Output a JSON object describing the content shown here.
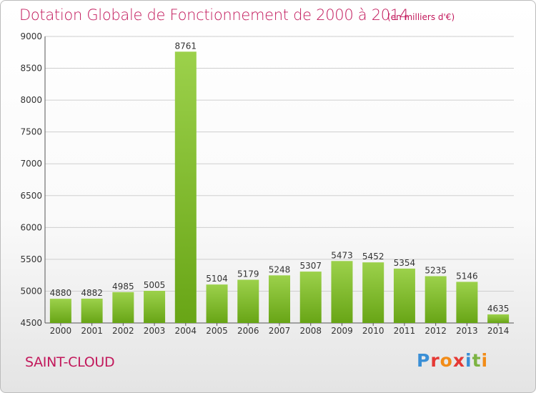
{
  "header": {
    "title": "Dotation Globale de Fonctionnement de 2000 à 2014",
    "subtitle": "(en milliers d'€)"
  },
  "footer": {
    "city": "SAINT-CLOUD",
    "brand": "Proxiti",
    "brand_colors": [
      "#3a8fd6",
      "#e53935",
      "#f28c18",
      "#e53935",
      "#3a8fd6",
      "#7cb342",
      "#f28c18"
    ]
  },
  "colors": {
    "bar_light": "#9cd14b",
    "bar_dark": "#68a516",
    "accent": "#c2185b",
    "grid": "#cfcfcf"
  },
  "chart_data": {
    "type": "bar",
    "title": "Dotation Globale de Fonctionnement de 2000 à 2014",
    "subtitle": "(en milliers d'€)",
    "categories": [
      "2000",
      "2001",
      "2002",
      "2003",
      "2004",
      "2005",
      "2006",
      "2007",
      "2008",
      "2009",
      "2010",
      "2011",
      "2012",
      "2013",
      "2014"
    ],
    "values": [
      4880,
      4882,
      4985,
      5005,
      8761,
      5104,
      5179,
      5248,
      5307,
      5473,
      5452,
      5354,
      5235,
      5146,
      4635
    ],
    "ylim": [
      4500,
      9000
    ],
    "yticks": [
      4500,
      5000,
      5500,
      6000,
      6500,
      7000,
      7500,
      8000,
      8500,
      9000
    ],
    "grid": true,
    "data_labels": true,
    "xlabel": "",
    "ylabel": ""
  }
}
